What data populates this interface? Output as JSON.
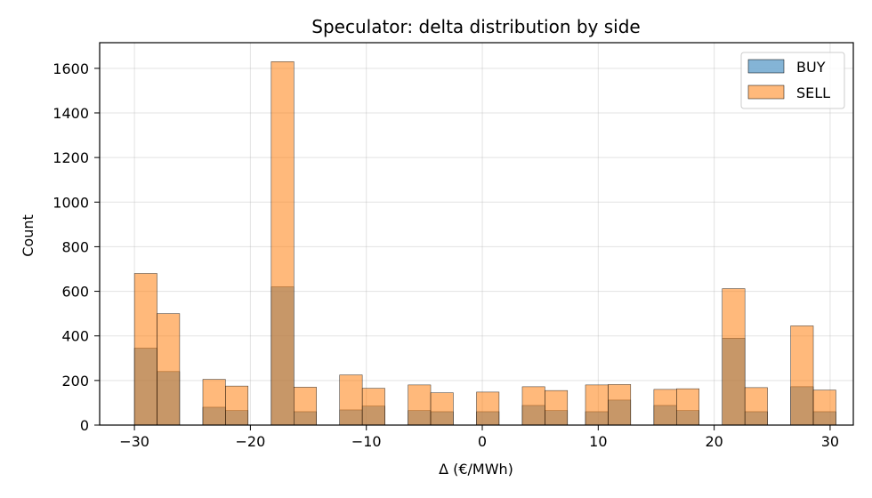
{
  "chart_data": {
    "type": "bar",
    "title": "Speculator: delta distribution by side",
    "xlabel": "Δ (€/MWh)",
    "ylabel": "Count",
    "xlim": [
      -33,
      32
    ],
    "ylim": [
      0,
      1715
    ],
    "xticks": [
      -30,
      -20,
      -10,
      0,
      10,
      20,
      30
    ],
    "xtick_labels": [
      "−30",
      "−20",
      "−10",
      "0",
      "10",
      "20",
      "30"
    ],
    "yticks": [
      0,
      200,
      400,
      600,
      800,
      1000,
      1200,
      1400,
      1600
    ],
    "grid": true,
    "legend_position": "top-right",
    "bin_width": 1.95,
    "bin_starts": [
      -30.0,
      -28.05,
      -24.1,
      -22.15,
      -18.2,
      -16.25,
      -12.3,
      -10.35,
      -6.4,
      -4.45,
      -0.5,
      3.45,
      5.4,
      8.9,
      10.85,
      14.8,
      16.75,
      20.7,
      22.65,
      26.6,
      28.55
    ],
    "series": [
      {
        "name": "BUY",
        "color": "#1f77b4",
        "values": [
          345,
          240,
          80,
          65,
          620,
          60,
          68,
          85,
          65,
          60,
          60,
          88,
          65,
          60,
          112,
          88,
          65,
          390,
          60,
          172,
          60
        ]
      },
      {
        "name": "SELL",
        "color": "#ff7f0e",
        "values": [
          680,
          500,
          205,
          175,
          1630,
          170,
          225,
          165,
          180,
          145,
          148,
          172,
          155,
          180,
          182,
          160,
          163,
          612,
          168,
          445,
          157
        ]
      }
    ]
  }
}
